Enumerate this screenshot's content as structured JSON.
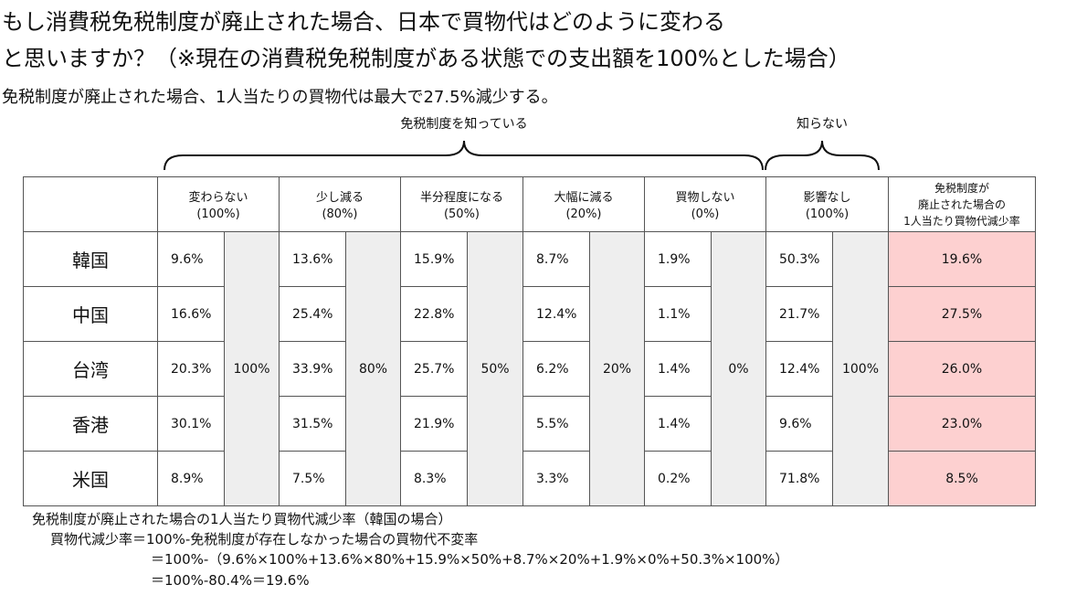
{
  "header": {
    "title_lines": [
      "もし消費税免税制度が廃止された場合、日本で買物代はどのように変わる",
      "と思いますか？（※現在の消費税免税制度がある状態での支出額を100%とした場合）"
    ],
    "subtitle": "免税制度が廃止された場合、1人当たりの買物代は最大で27.5%減少する。"
  },
  "groups": [
    "免税制度を知っている",
    "知らない"
  ],
  "table": {
    "columns": [
      {
        "label": "変わらない",
        "weight_label": "(100%)",
        "weight": "100%"
      },
      {
        "label": "少し減る",
        "weight_label": "(80%)",
        "weight": "80%"
      },
      {
        "label": "半分程度になる",
        "weight_label": "(50%)",
        "weight": "50%"
      },
      {
        "label": "大幅に減る",
        "weight_label": "(20%)",
        "weight": "20%"
      },
      {
        "label": "買物しない",
        "weight_label": "(0%)",
        "weight": "0%"
      },
      {
        "label": "影響なし",
        "weight_label": "(100%)",
        "weight": "100%"
      }
    ],
    "rate_header": [
      "免税制度が",
      "廃止された場合の",
      "1人当たり買物代減少率"
    ],
    "rows": [
      {
        "country": "韓国",
        "values": [
          "9.6%",
          "13.6%",
          "15.9%",
          "8.7%",
          "1.9%",
          "50.3%"
        ],
        "rate": "19.6%"
      },
      {
        "country": "中国",
        "values": [
          "16.6%",
          "25.4%",
          "22.8%",
          "12.4%",
          "1.1%",
          "21.7%"
        ],
        "rate": "27.5%"
      },
      {
        "country": "台湾",
        "values": [
          "20.3%",
          "33.9%",
          "25.7%",
          "6.2%",
          "1.4%",
          "12.4%"
        ],
        "rate": "26.0%"
      },
      {
        "country": "香港",
        "values": [
          "30.1%",
          "31.5%",
          "21.9%",
          "5.5%",
          "1.4%",
          "9.6%"
        ],
        "rate": "23.0%"
      },
      {
        "country": "米国",
        "values": [
          "8.9%",
          "7.5%",
          "8.3%",
          "3.3%",
          "0.2%",
          "71.8%"
        ],
        "rate": "8.5%"
      }
    ]
  },
  "notes": [
    "免税制度が廃止された場合の1人当たり買物代減少率（韓国の場合）",
    "買物代減少率＝100%-免税制度が存在しなかった場合の買物代不変率",
    "＝100%-（9.6%×100%+13.6%×80%+15.9%×50%+8.7%×20%+1.9%×0%+50.3%×100%）",
    "＝100%-80.4%＝19.6%"
  ]
}
